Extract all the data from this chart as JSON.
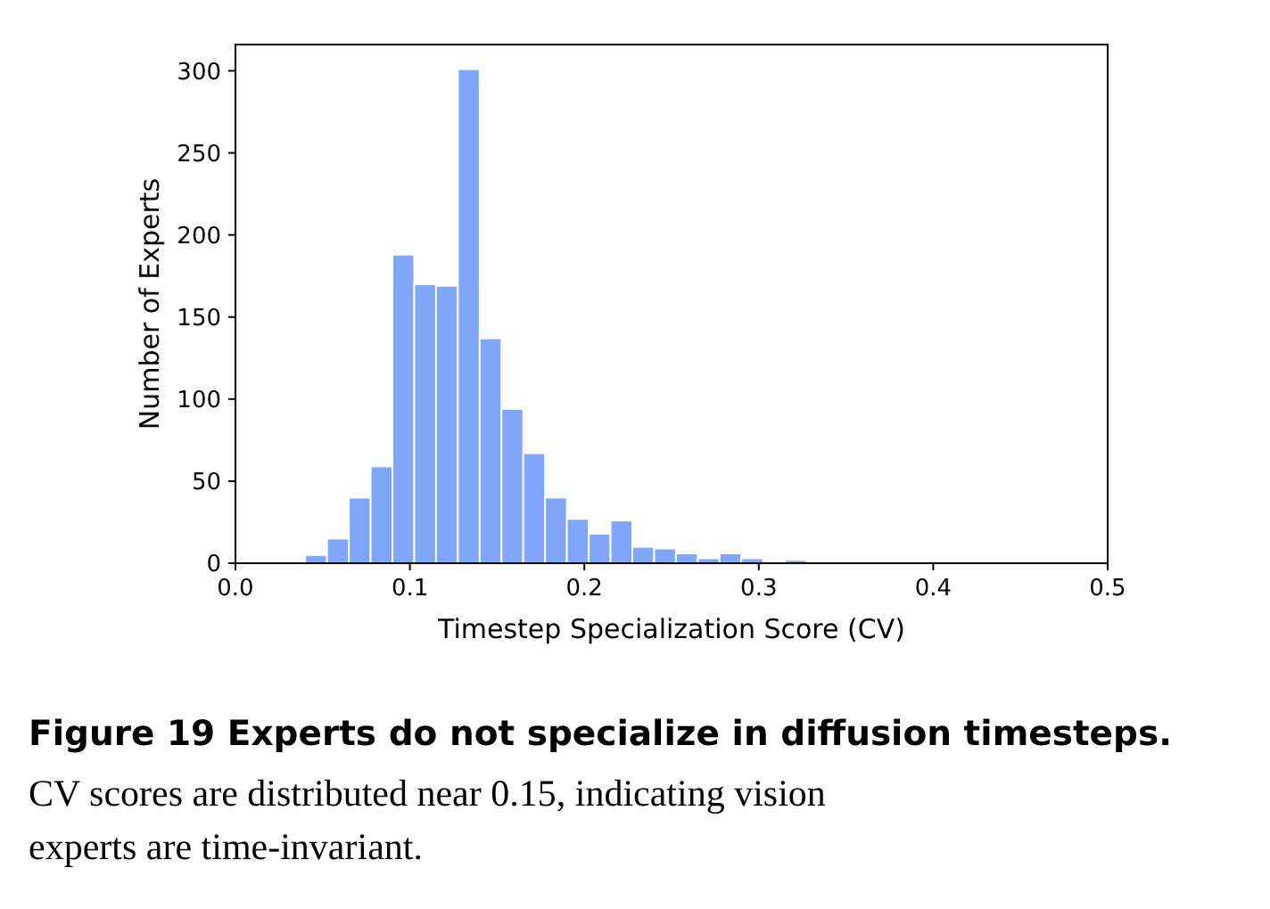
{
  "chart_data": {
    "type": "histogram",
    "xlabel": "Timestep Specialization Score (CV)",
    "ylabel": "Number of Experts",
    "bins": [
      0.04,
      0.0525,
      0.065,
      0.0775,
      0.09,
      0.1025,
      0.115,
      0.1275,
      0.14,
      0.1525,
      0.165,
      0.1775,
      0.19,
      0.2025,
      0.215,
      0.2275,
      0.24,
      0.2525,
      0.265,
      0.2775,
      0.29,
      0.3025,
      0.315,
      0.3275,
      0.34,
      0.3525,
      0.365,
      0.3775,
      0.39,
      0.4025
    ],
    "values": [
      5,
      15,
      40,
      59,
      188,
      170,
      169,
      301,
      137,
      94,
      67,
      40,
      27,
      18,
      26,
      10,
      9,
      6,
      3,
      6,
      3,
      0,
      2,
      0,
      0,
      0,
      0,
      1,
      0
    ],
    "color": "#7fa6fb",
    "xlim": [
      0,
      0.5
    ],
    "xticks": [
      {
        "value": 0,
        "label": "0.0"
      },
      0.1,
      0.2,
      0.3,
      0.4,
      0.5
    ],
    "ylim": [
      0,
      316
    ],
    "yticks": [
      0,
      50,
      100,
      150,
      200,
      250,
      300
    ],
    "annotations": [
      "Figure 19   Experts do not specialize in diffusion timesteps.",
      "CV scores are distributed near 0.15, indicating vision experts are time-invariant."
    ]
  }
}
